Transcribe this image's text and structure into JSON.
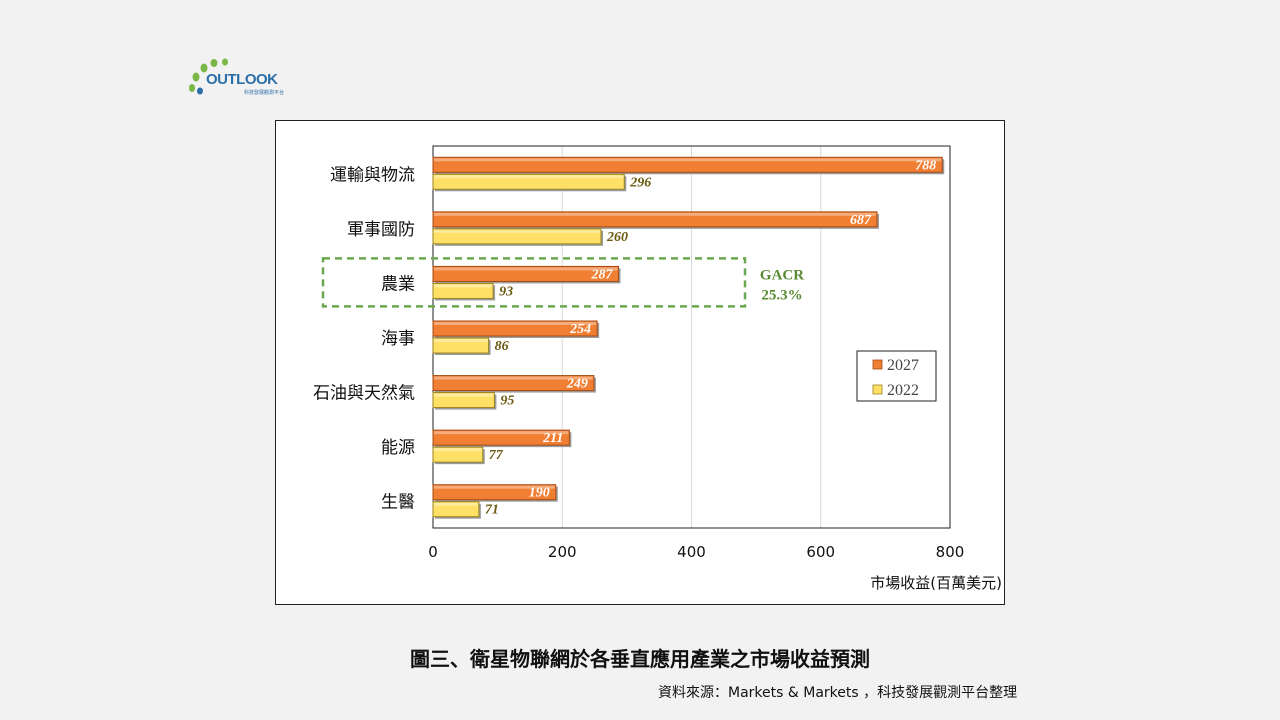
{
  "logo": {
    "text": "OUTLOOK",
    "subtext": "科技發展觀測平台",
    "colors": {
      "text": "#2c6fa8",
      "dots": "#7ab648"
    }
  },
  "chart_data": {
    "type": "bar",
    "orientation": "horizontal",
    "categories": [
      "運輸與物流",
      "軍事國防",
      "農業",
      "海事",
      "石油與天然氣",
      "能源",
      "生醫"
    ],
    "series": [
      {
        "name": "2027",
        "values": [
          788,
          687,
          287,
          254,
          249,
          211,
          190
        ],
        "color": "#f07f33"
      },
      {
        "name": "2022",
        "values": [
          296,
          260,
          93,
          86,
          95,
          77,
          71
        ],
        "color": "#ffe066"
      }
    ],
    "xlabel": "市場收益(百萬美元)",
    "xlim": [
      0,
      800
    ],
    "xticks": [
      0,
      200,
      400,
      600,
      800
    ],
    "grid": true,
    "legend_position": "right",
    "annotation": {
      "line1": "GACR",
      "line2": "25.3%",
      "highlight_category": "農業",
      "color": "#5a8a32"
    }
  },
  "caption": "圖三、衛星物聯網於各垂直應用產業之市場收益預測",
  "source": "資料來源：Markets & Markets ，科技發展觀測平台整理"
}
